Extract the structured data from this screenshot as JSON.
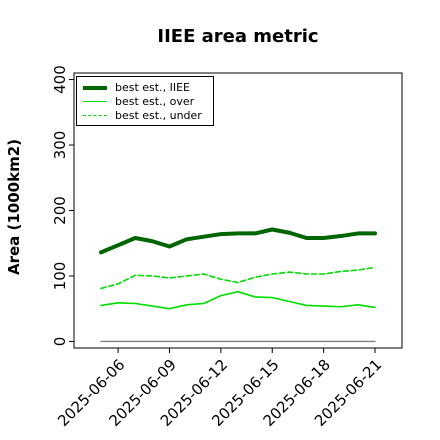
{
  "chart_data": {
    "type": "line",
    "title": "IIEE area metric",
    "xlabel": "",
    "ylabel": "Area (1000km2)",
    "x": [
      "2025-06-05",
      "2025-06-06",
      "2025-06-07",
      "2025-06-08",
      "2025-06-09",
      "2025-06-10",
      "2025-06-11",
      "2025-06-12",
      "2025-06-13",
      "2025-06-14",
      "2025-06-15",
      "2025-06-16",
      "2025-06-17",
      "2025-06-18",
      "2025-06-19",
      "2025-06-20",
      "2025-06-21"
    ],
    "xtick_labels": [
      "2025-06-06",
      "2025-06-09",
      "2025-06-12",
      "2025-06-15",
      "2025-06-18",
      "2025-06-21"
    ],
    "yticks": [
      0,
      100,
      200,
      300,
      400
    ],
    "ylim": [
      -10,
      410
    ],
    "legend_position": "top-left",
    "grid": false,
    "series": [
      {
        "name": "best est., IIEE",
        "color": "#006400",
        "style": "solid-thick",
        "values": [
          136,
          147,
          158,
          153,
          145,
          156,
          160,
          164,
          165,
          165,
          171,
          166,
          158,
          158,
          161,
          165,
          165
        ]
      },
      {
        "name": "best est., over",
        "color": "#00dd00",
        "style": "solid",
        "values": [
          55,
          59,
          58,
          54,
          50,
          56,
          58,
          70,
          76,
          68,
          67,
          61,
          55,
          54,
          53,
          56,
          52
        ]
      },
      {
        "name": "best est., under",
        "color": "#00dd00",
        "style": "dashed",
        "values": [
          81,
          88,
          101,
          100,
          97,
          100,
          103,
          95,
          90,
          98,
          103,
          106,
          103,
          103,
          107,
          109,
          113
        ]
      },
      {
        "name": "",
        "color": "#808080",
        "style": "solid-thin",
        "values": [
          0,
          0,
          0,
          0,
          0,
          0,
          0,
          0,
          0,
          0,
          0,
          0,
          0,
          0,
          0,
          0,
          0
        ]
      }
    ]
  }
}
